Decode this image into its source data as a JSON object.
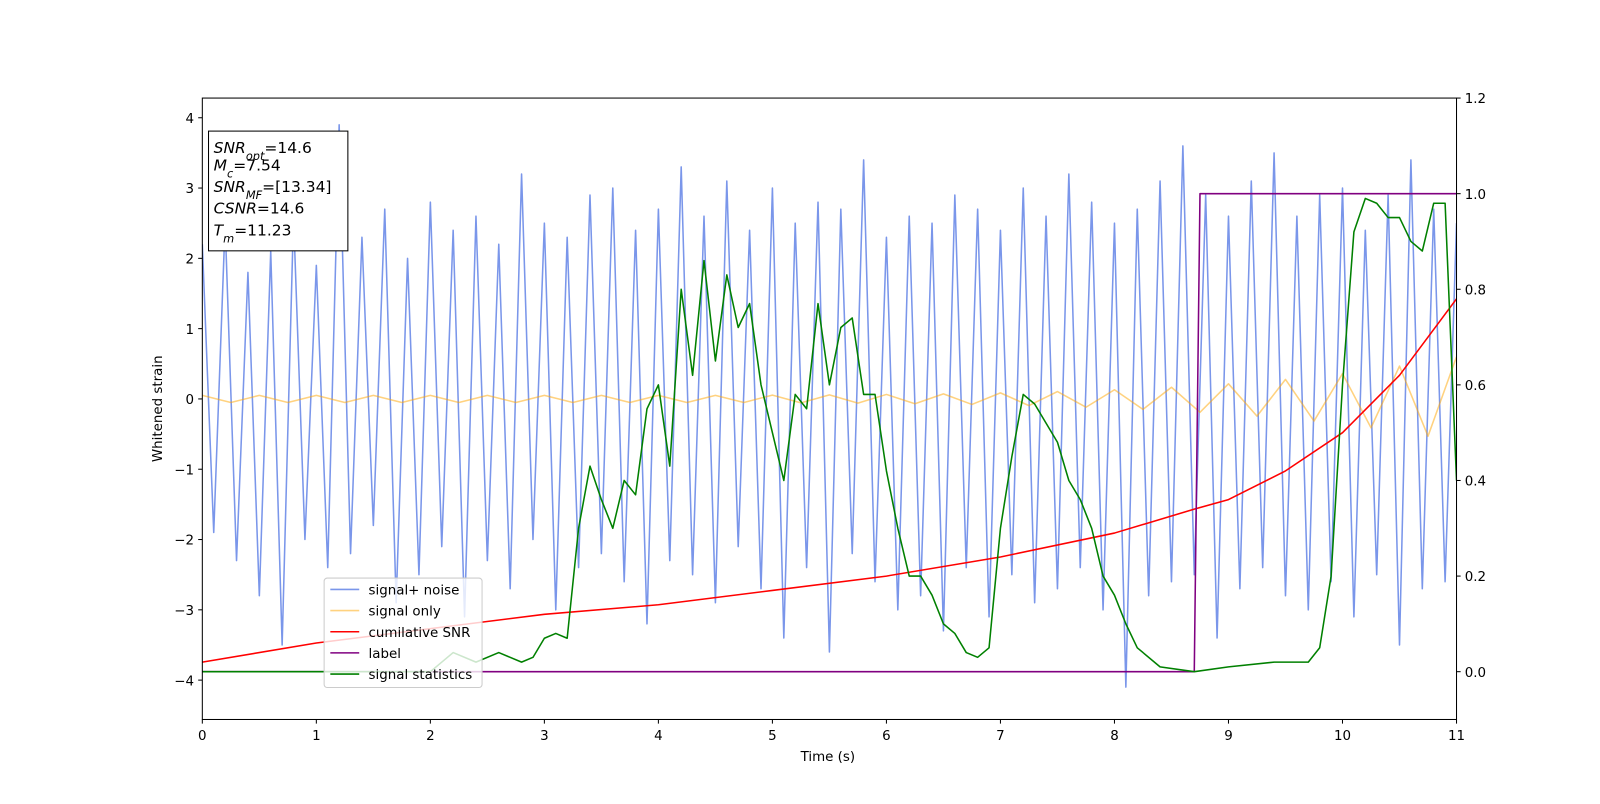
{
  "chart_data": {
    "type": "line",
    "xlabel": "Time (s)",
    "ylabel": "Whitened strain",
    "xlim": [
      0,
      11
    ],
    "xticks": [
      0,
      1,
      2,
      3,
      4,
      5,
      6,
      7,
      8,
      9,
      10,
      11
    ],
    "ylim": [
      -4.56,
      4.28
    ],
    "yticks": [
      {
        "value": -4,
        "label": "−4"
      },
      {
        "value": -3,
        "label": "−3"
      },
      {
        "value": -2,
        "label": "−2"
      },
      {
        "value": -1,
        "label": "−1"
      },
      0,
      1,
      2,
      3,
      4
    ],
    "y2lim": [
      -0.1,
      1.2
    ],
    "y2ticks": [
      {
        "value": 0,
        "label": "0.0"
      },
      {
        "value": 0.2,
        "label": "0.2"
      },
      {
        "value": 0.4,
        "label": "0.4"
      },
      {
        "value": 0.6,
        "label": "0.6"
      },
      {
        "value": 0.8,
        "label": "0.8"
      },
      {
        "value": 1,
        "label": "1.0"
      },
      {
        "value": 1.2,
        "label": "1.2"
      }
    ],
    "legend": "lower left",
    "annotations": [
      {
        "symbol": "SNR",
        "sub": "opt",
        "text": "=14.6"
      },
      {
        "symbol": "M",
        "sub": "c",
        "text": "=7.54"
      },
      {
        "symbol": "SNR",
        "sub": "MF",
        "text": "=[13.34]"
      },
      {
        "symbol": "CSNR",
        "text": "=14.6"
      },
      {
        "symbol": "T",
        "sub": "m",
        "text": "=11.23"
      }
    ],
    "series": [
      {
        "name": "signal+ noise",
        "color": "#4169e1",
        "opacity": 0.7,
        "x": [
          0,
          0.1,
          0.2,
          0.3,
          0.4,
          0.5,
          0.6,
          0.7,
          0.8,
          0.9,
          1,
          1.1,
          1.2,
          1.3,
          1.4,
          1.5,
          1.6,
          1.7,
          1.8,
          1.9,
          2,
          2.1,
          2.2,
          2.3,
          2.4,
          2.5,
          2.6,
          2.7,
          2.8,
          2.9,
          3,
          3.1,
          3.2,
          3.3,
          3.4,
          3.5,
          3.6,
          3.7,
          3.8,
          3.9,
          4,
          4.1,
          4.2,
          4.3,
          4.4,
          4.5,
          4.6,
          4.7,
          4.8,
          4.9,
          5,
          5.1,
          5.2,
          5.3,
          5.4,
          5.5,
          5.6,
          5.7,
          5.8,
          5.9,
          6,
          6.1,
          6.2,
          6.3,
          6.4,
          6.5,
          6.6,
          6.7,
          6.8,
          6.9,
          7,
          7.1,
          7.2,
          7.3,
          7.4,
          7.5,
          7.6,
          7.7,
          7.8,
          7.9,
          8,
          8.1,
          8.2,
          8.3,
          8.4,
          8.5,
          8.6,
          8.7,
          8.8,
          8.9,
          9,
          9.1,
          9.2,
          9.3,
          9.4,
          9.5,
          9.6,
          9.7,
          9.8,
          9.9,
          10,
          10.1,
          10.2,
          10.3,
          10.4,
          10.5,
          10.6,
          10.7,
          10.8,
          10.9,
          11
        ],
        "values": [
          2.2,
          -1.9,
          2.5,
          -2.3,
          1.8,
          -2.8,
          2.1,
          -3.5,
          2.6,
          -2.0,
          1.9,
          -2.4,
          3.9,
          -2.2,
          2.3,
          -1.8,
          2.7,
          -2.9,
          2.0,
          -2.5,
          2.8,
          -2.1,
          2.4,
          -3.1,
          2.6,
          -2.3,
          2.2,
          -2.7,
          3.2,
          -2.0,
          2.5,
          -3.0,
          2.3,
          -2.4,
          2.9,
          -2.2,
          3.0,
          -2.6,
          2.4,
          -3.2,
          2.7,
          -2.3,
          3.3,
          -2.5,
          2.6,
          -2.9,
          3.1,
          -2.1,
          2.4,
          -2.7,
          3.0,
          -3.4,
          2.5,
          -2.4,
          2.8,
          -3.6,
          2.7,
          -2.2,
          3.4,
          -2.6,
          2.3,
          -3.0,
          2.6,
          -2.8,
          2.5,
          -3.3,
          2.9,
          -2.4,
          2.7,
          -3.1,
          2.4,
          -2.5,
          3.0,
          -2.9,
          2.6,
          -2.7,
          3.2,
          -2.4,
          2.8,
          -3.0,
          2.5,
          -4.1,
          2.7,
          -2.8,
          3.1,
          -2.6,
          3.6,
          -2.5,
          2.9,
          -3.4,
          2.6,
          -2.7,
          3.1,
          -2.4,
          3.5,
          -2.8,
          2.6,
          -3.0,
          2.9,
          -2.6,
          3.0,
          -3.1,
          2.4,
          -2.5,
          2.9,
          -3.5,
          3.4,
          -2.7,
          2.7,
          -2.6,
          2.5
        ]
      },
      {
        "name": "signal only",
        "color": "#ffa500",
        "opacity": 0.5,
        "x": [
          0,
          0.25,
          0.5,
          0.75,
          1,
          1.25,
          1.5,
          1.75,
          2,
          2.25,
          2.5,
          2.75,
          3,
          3.25,
          3.5,
          3.75,
          4,
          4.25,
          4.5,
          4.75,
          5,
          5.25,
          5.5,
          5.75,
          6,
          6.25,
          6.5,
          6.75,
          7,
          7.25,
          7.5,
          7.75,
          8,
          8.25,
          8.5,
          8.75,
          9,
          9.25,
          9.5,
          9.75,
          10,
          10.25,
          10.5,
          10.75,
          11
        ],
        "values": [
          0.05,
          -0.05,
          0.05,
          -0.05,
          0.05,
          -0.05,
          0.05,
          -0.05,
          0.05,
          -0.05,
          0.05,
          -0.05,
          0.05,
          -0.05,
          0.05,
          -0.05,
          0.05,
          -0.05,
          0.05,
          -0.05,
          0.055,
          -0.056,
          0.058,
          -0.06,
          0.064,
          -0.068,
          0.072,
          -0.078,
          0.086,
          -0.095,
          0.105,
          -0.118,
          0.131,
          -0.148,
          0.166,
          -0.19,
          0.215,
          -0.245,
          0.278,
          -0.315,
          0.36,
          -0.41,
          0.467,
          -0.53,
          0.6
        ]
      },
      {
        "name": "cumilative SNR",
        "color": "#ff0000",
        "axis": "y2",
        "x": [
          0,
          1,
          2,
          3,
          4,
          5,
          6,
          7,
          8,
          8.7,
          9,
          9.5,
          10,
          10.5,
          11
        ],
        "values": [
          0.02,
          0.06,
          0.09,
          0.12,
          0.14,
          0.17,
          0.2,
          0.24,
          0.29,
          0.34,
          0.36,
          0.42,
          0.5,
          0.62,
          0.78
        ]
      },
      {
        "name": "label",
        "color": "#800080",
        "axis": "y2",
        "x": [
          0,
          8.7,
          8.75,
          11
        ],
        "values": [
          0,
          0,
          1,
          1
        ]
      },
      {
        "name": "signal statistics",
        "color": "#008000",
        "axis": "y2",
        "x": [
          0,
          1,
          2,
          2.2,
          2.4,
          2.6,
          2.8,
          2.9,
          3,
          3.1,
          3.2,
          3.3,
          3.4,
          3.5,
          3.6,
          3.7,
          3.8,
          3.9,
          4,
          4.1,
          4.2,
          4.3,
          4.4,
          4.5,
          4.6,
          4.7,
          4.8,
          4.9,
          5,
          5.1,
          5.2,
          5.3,
          5.4,
          5.5,
          5.6,
          5.7,
          5.8,
          5.9,
          6,
          6.1,
          6.2,
          6.3,
          6.4,
          6.5,
          6.6,
          6.7,
          6.8,
          6.9,
          7,
          7.1,
          7.2,
          7.3,
          7.4,
          7.5,
          7.6,
          7.7,
          7.8,
          7.9,
          8,
          8.1,
          8.2,
          8.4,
          8.7,
          9,
          9.4,
          9.7,
          9.8,
          9.9,
          10,
          10.1,
          10.2,
          10.3,
          10.4,
          10.5,
          10.6,
          10.7,
          10.8,
          10.9,
          11
        ],
        "values": [
          0,
          0,
          0,
          0.04,
          0.02,
          0.04,
          0.02,
          0.03,
          0.07,
          0.08,
          0.07,
          0.3,
          0.43,
          0.36,
          0.3,
          0.4,
          0.37,
          0.55,
          0.6,
          0.43,
          0.8,
          0.62,
          0.86,
          0.65,
          0.83,
          0.72,
          0.77,
          0.6,
          0.5,
          0.4,
          0.58,
          0.55,
          0.77,
          0.6,
          0.72,
          0.74,
          0.58,
          0.58,
          0.42,
          0.3,
          0.2,
          0.2,
          0.16,
          0.1,
          0.08,
          0.04,
          0.03,
          0.05,
          0.3,
          0.45,
          0.58,
          0.56,
          0.52,
          0.48,
          0.4,
          0.36,
          0.3,
          0.2,
          0.16,
          0.1,
          0.05,
          0.01,
          0,
          0.01,
          0.02,
          0.02,
          0.05,
          0.2,
          0.6,
          0.92,
          0.99,
          0.98,
          0.95,
          0.95,
          0.9,
          0.88,
          0.98,
          0.98,
          0.4
        ]
      }
    ]
  }
}
